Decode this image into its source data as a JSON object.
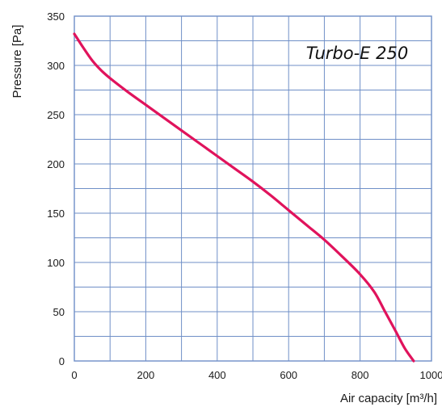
{
  "chart_data": {
    "type": "line",
    "title": "Turbo-E 250",
    "xlabel": "Air capacity [m³/h]",
    "ylabel": "Pressure [Pa]",
    "xlim": [
      0,
      1000
    ],
    "ylim": [
      0,
      350
    ],
    "x_ticks": [
      "0",
      "200",
      "400",
      "600",
      "800",
      "1000"
    ],
    "y_ticks": [
      "0",
      "50",
      "100",
      "150",
      "200",
      "250",
      "300",
      "350"
    ],
    "grid": true,
    "colors": {
      "grid": "#6f8fc7",
      "series": "#e0135c"
    },
    "series": [
      {
        "x": [
          0,
          25,
          50,
          75,
          100,
          150,
          200,
          250,
          300,
          350,
          400,
          450,
          500,
          550,
          600,
          650,
          700,
          750,
          800,
          840,
          870,
          900,
          925,
          950
        ],
        "y": [
          332,
          318,
          305,
          295,
          287,
          273,
          260,
          247,
          234,
          221,
          208,
          195,
          182,
          168,
          153,
          138,
          123,
          106,
          88,
          70,
          50,
          30,
          13,
          0
        ]
      }
    ]
  }
}
